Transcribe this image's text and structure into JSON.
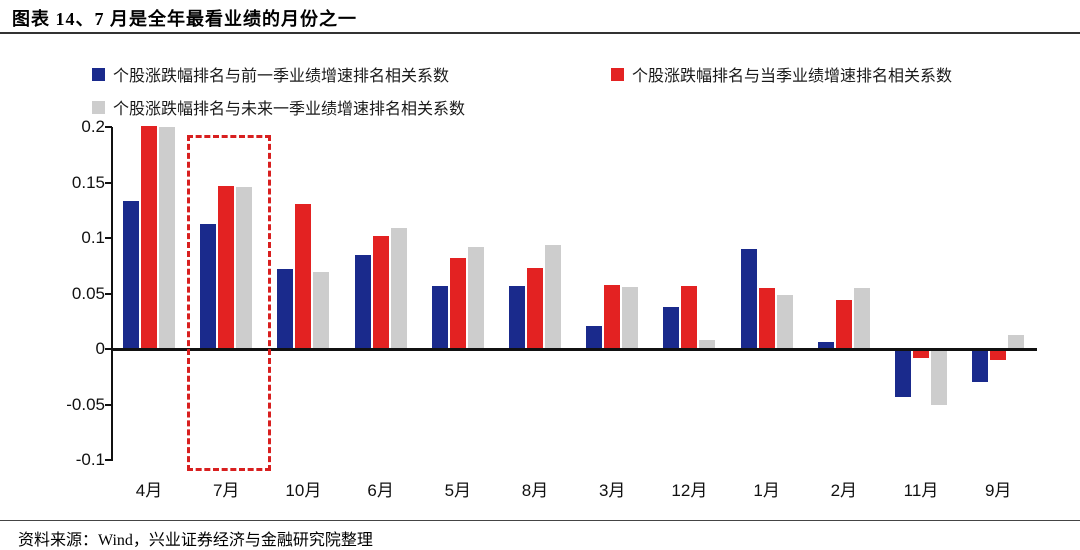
{
  "page": {
    "title": "图表 14、7 月是全年最看业绩的月份之一",
    "source_note": "资料来源：Wind，兴业证券经济与金融研究院整理"
  },
  "chart_data": {
    "type": "bar",
    "title": "",
    "xlabel": "",
    "ylabel": "",
    "categories": [
      "4月",
      "7月",
      "10月",
      "6月",
      "5月",
      "8月",
      "3月",
      "12月",
      "1月",
      "2月",
      "11月",
      "9月"
    ],
    "series": [
      {
        "name": "个股涨跌幅排名与前一季业绩增速排名相关系数",
        "color": "#1a2a8c",
        "values": [
          0.133,
          0.113,
          0.072,
          0.085,
          0.057,
          0.057,
          0.021,
          0.038,
          0.09,
          0.006,
          -0.041,
          -0.028
        ]
      },
      {
        "name": "个股涨跌幅排名与当季业绩增速排名相关系数",
        "color": "#e32222",
        "values": [
          0.201,
          0.147,
          0.131,
          0.102,
          0.082,
          0.073,
          0.058,
          0.057,
          0.055,
          0.044,
          -0.006,
          -0.008
        ]
      },
      {
        "name": "个股涨跌幅排名与未来一季业绩增速排名相关系数",
        "color": "#cdcdcd",
        "values": [
          0.2,
          0.146,
          0.069,
          0.109,
          0.092,
          0.094,
          0.056,
          0.008,
          0.049,
          0.055,
          -0.049,
          0.013
        ]
      }
    ],
    "yticks": [
      "0.2",
      "0.15",
      "0.1",
      "0.05",
      "0",
      "-0.05",
      "-0.1"
    ],
    "ylim": [
      -0.1,
      0.2
    ],
    "grid": false,
    "legend_position": "top",
    "highlight": {
      "category": "7月",
      "type": "dashed-box",
      "color": "#d81f1f"
    }
  }
}
